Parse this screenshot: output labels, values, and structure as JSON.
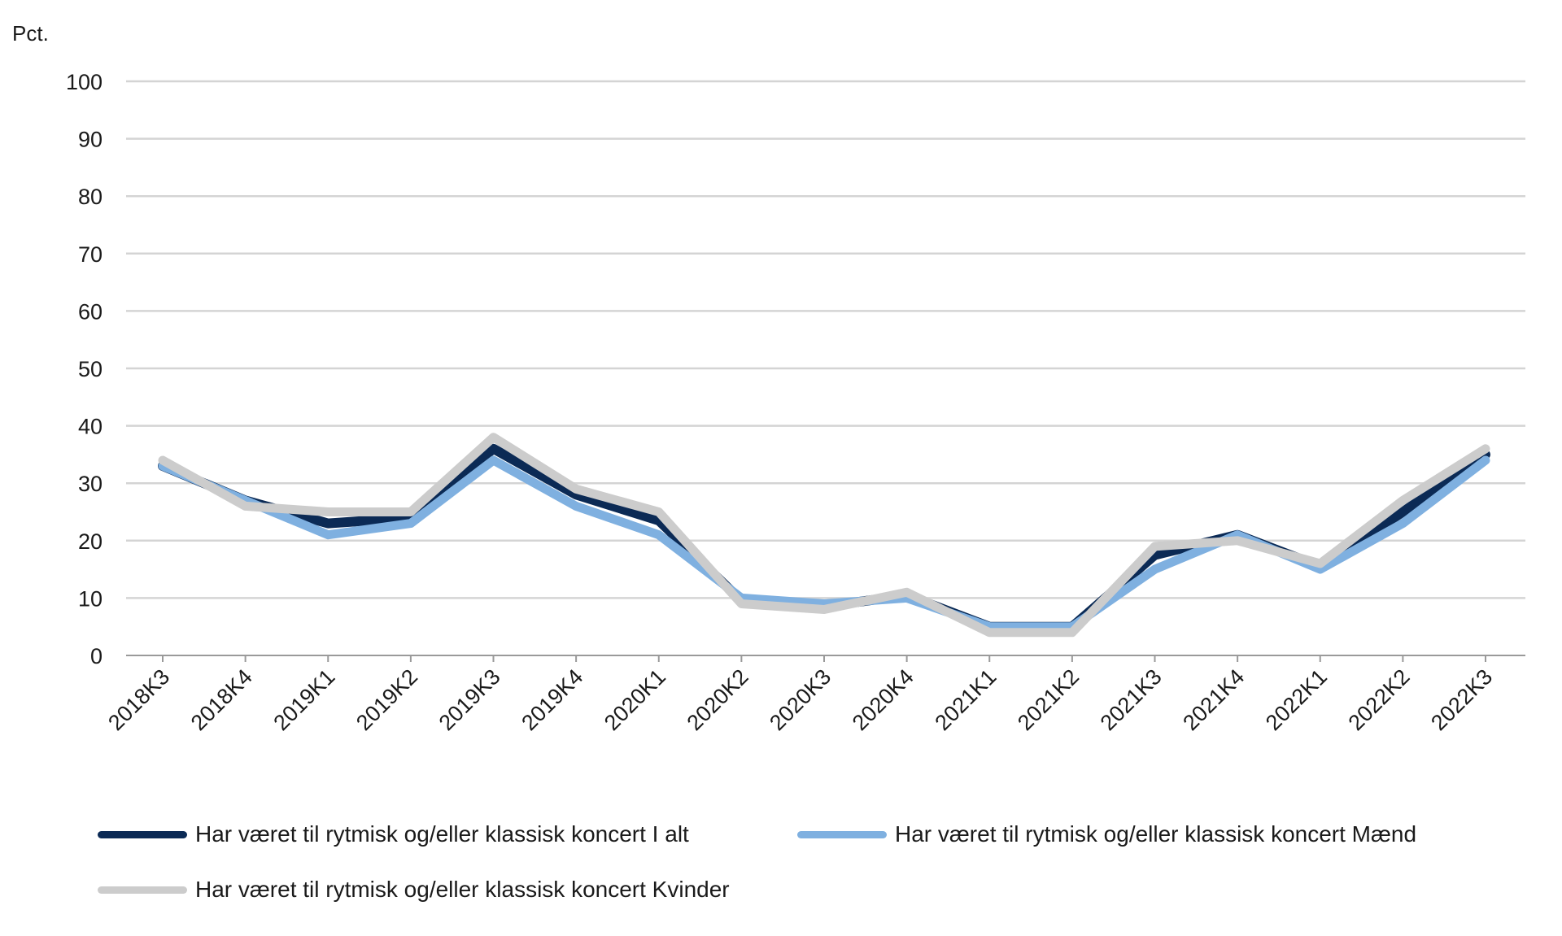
{
  "chart_data": {
    "type": "line",
    "ylabel": "Pct.",
    "ylim": [
      0,
      100
    ],
    "yticks": [
      0,
      10,
      20,
      30,
      40,
      50,
      60,
      70,
      80,
      90,
      100
    ],
    "grid": true,
    "legend_position": "bottom",
    "categories": [
      "2018K3",
      "2018K4",
      "2019K1",
      "2019K2",
      "2019K3",
      "2019K4",
      "2020K1",
      "2020K2",
      "2020K3",
      "2020K4",
      "2021K1",
      "2021K2",
      "2021K3",
      "2021K4",
      "2022K1",
      "2022K2",
      "2022K3"
    ],
    "series": [
      {
        "name": "Har været til rytmisk og/eller klassisk koncert I alt",
        "color": "#0b2a55",
        "values": [
          33,
          27,
          23,
          24,
          36,
          28,
          23.5,
          9.5,
          8.5,
          10.5,
          5,
          5,
          17.5,
          21,
          15.5,
          25,
          35
        ]
      },
      {
        "name": "Har været til rytmisk og/eller klassisk koncert Mænd",
        "color": "#7fb0e0",
        "values": [
          33,
          27,
          21,
          23,
          34,
          26,
          21,
          10,
          9,
          10,
          5,
          5,
          15,
          21,
          15,
          23,
          34
        ]
      },
      {
        "name": "Har været til rytmisk og/eller klassisk koncert Kvinder",
        "color": "#cccccc",
        "values": [
          34,
          26,
          25,
          25,
          38,
          29,
          25,
          9,
          8,
          11,
          4,
          4,
          19,
          20,
          16,
          27,
          36
        ]
      }
    ]
  }
}
